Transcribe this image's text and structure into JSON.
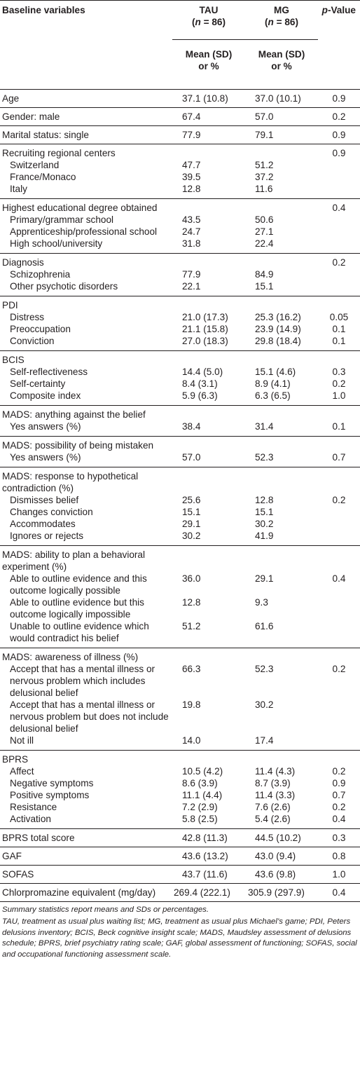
{
  "header": {
    "label": "Baseline variables",
    "tau": "TAU",
    "tau_n": "(n = 86)",
    "mg": "MG",
    "mg_n": "(n = 86)",
    "pvalue": "p-Value",
    "stat_line1": "Mean (SD)",
    "stat_line2": "or %"
  },
  "rows": {
    "age": {
      "label": "Age",
      "tau": "37.1 (10.8)",
      "mg": "37.0 (10.1)",
      "p": "0.9"
    },
    "gender": {
      "label": "Gender: male",
      "tau": "67.4",
      "mg": "57.0",
      "p": "0.2"
    },
    "marital": {
      "label": "Marital status: single",
      "tau": "77.9",
      "mg": "79.1",
      "p": "0.9"
    },
    "centers": {
      "label": "Recruiting regional centers",
      "p": "0.9",
      "items": [
        {
          "label": "Switzerland",
          "tau": "47.7",
          "mg": "51.2"
        },
        {
          "label": "France/Monaco",
          "tau": "39.5",
          "mg": "37.2"
        },
        {
          "label": "Italy",
          "tau": "12.8",
          "mg": "11.6"
        }
      ]
    },
    "education": {
      "label": "Highest educational degree obtained",
      "p": "0.4",
      "items": [
        {
          "label": "Primary/grammar school",
          "tau": "43.5",
          "mg": "50.6"
        },
        {
          "label": "Apprenticeship/professional school",
          "tau": "24.7",
          "mg": "27.1"
        },
        {
          "label": "High school/university",
          "tau": "31.8",
          "mg": "22.4"
        }
      ]
    },
    "diagnosis": {
      "label": "Diagnosis",
      "p": "0.2",
      "items": [
        {
          "label": "Schizophrenia",
          "tau": "77.9",
          "mg": "84.9"
        },
        {
          "label": "Other psychotic disorders",
          "tau": "22.1",
          "mg": "15.1"
        }
      ]
    },
    "pdi": {
      "label": "PDI",
      "items": [
        {
          "label": "Distress",
          "tau": "21.0 (17.3)",
          "mg": "25.3 (16.2)",
          "p": "0.05"
        },
        {
          "label": "Preoccupation",
          "tau": "21.1 (15.8)",
          "mg": "23.9 (14.9)",
          "p": "0.1"
        },
        {
          "label": "Conviction",
          "tau": "27.0 (18.3)",
          "mg": "29.8 (18.4)",
          "p": "0.1"
        }
      ]
    },
    "bcis": {
      "label": "BCIS",
      "items": [
        {
          "label": "Self-reflectiveness",
          "tau": "14.4 (5.0)",
          "mg": "15.1 (4.6)",
          "p": "0.3"
        },
        {
          "label": "Self-certainty",
          "tau": "8.4 (3.1)",
          "mg": "8.9 (4.1)",
          "p": "0.2"
        },
        {
          "label": "Composite index",
          "tau": "5.9 (6.3)",
          "mg": "6.3 (6.5)",
          "p": "1.0"
        }
      ]
    },
    "mads_against": {
      "label": "MADS: anything against the belief",
      "items": [
        {
          "label": "Yes answers (%)",
          "tau": "38.4",
          "mg": "31.4",
          "p": "0.1"
        }
      ]
    },
    "mads_mistaken": {
      "label": "MADS: possibility of being mistaken",
      "items": [
        {
          "label": "Yes answers (%)",
          "tau": "57.0",
          "mg": "52.3",
          "p": "0.7"
        }
      ]
    },
    "mads_contradiction": {
      "label": "MADS: response to hypothetical contradiction (%)",
      "items": [
        {
          "label": "Dismisses belief",
          "tau": "25.6",
          "mg": "12.8",
          "p": "0.2"
        },
        {
          "label": "Changes conviction",
          "tau": "15.1",
          "mg": "15.1"
        },
        {
          "label": "Accommodates",
          "tau": "29.1",
          "mg": "30.2"
        },
        {
          "label": "Ignores or rejects",
          "tau": "30.2",
          "mg": "41.9"
        }
      ]
    },
    "mads_experiment": {
      "label": "MADS: ability to plan a behavioral experiment (%)",
      "items": [
        {
          "label": "Able to outline evidence and this outcome logically possible",
          "tau": "36.0",
          "mg": "29.1",
          "p": "0.4"
        },
        {
          "label": "Able to outline evidence but this outcome logically impossible",
          "tau": "12.8",
          "mg": "9.3"
        },
        {
          "label": "Unable to outline evidence which would contradict his belief",
          "tau": "51.2",
          "mg": "61.6"
        }
      ]
    },
    "mads_illness": {
      "label": "MADS: awareness of illness (%)",
      "items": [
        {
          "label": "Accept that has a mental illness or nervous problem which includes delusional belief",
          "tau": "66.3",
          "mg": "52.3",
          "p": "0.2"
        },
        {
          "label": "Accept that has a mental illness or nervous problem but does not include delusional belief",
          "tau": "19.8",
          "mg": "30.2"
        },
        {
          "label": "Not ill",
          "tau": "14.0",
          "mg": "17.4"
        }
      ]
    },
    "bprs": {
      "label": "BPRS",
      "items": [
        {
          "label": "Affect",
          "tau": "10.5 (4.2)",
          "mg": "11.4 (4.3)",
          "p": "0.2"
        },
        {
          "label": "Negative symptoms",
          "tau": "8.6 (3.9)",
          "mg": "8.7 (3.9)",
          "p": "0.9"
        },
        {
          "label": "Positive symptoms",
          "tau": "11.1 (4.4)",
          "mg": "11.4 (3.3)",
          "p": "0.7"
        },
        {
          "label": "Resistance",
          "tau": "7.2 (2.9)",
          "mg": "7.6 (2.6)",
          "p": "0.2"
        },
        {
          "label": "Activation",
          "tau": "5.8 (2.5)",
          "mg": "5.4 (2.6)",
          "p": "0.4"
        }
      ]
    },
    "bprs_total": {
      "label": "BPRS total score",
      "tau": "42.8 (11.3)",
      "mg": "44.5 (10.2)",
      "p": "0.3"
    },
    "gaf": {
      "label": "GAF",
      "tau": "43.6 (13.2)",
      "mg": "43.0 (9.4)",
      "p": "0.8"
    },
    "sofas": {
      "label": "SOFAS",
      "tau": "43.7 (11.6)",
      "mg": "43.6 (9.8)",
      "p": "1.0"
    },
    "cpz": {
      "label": "Chlorpromazine equivalent (mg/day)",
      "tau": "269.4 (222.1)",
      "mg": "305.9 (297.9)",
      "p": "0.4"
    }
  },
  "footnote": {
    "line1": "Summary statistics report means and SDs or percentages.",
    "line2": "TAU, treatment as usual plus waiting list; MG, treatment as usual plus Michael’s game; PDI, Peters delusions inventory; BCIS, Beck cognitive insight scale; MADS, Maudsley assessment of delusions schedule; BPRS, brief psychiatry rating scale; GAF, global assessment of functioning; SOFAS, social and occupational functioning assessment scale."
  }
}
